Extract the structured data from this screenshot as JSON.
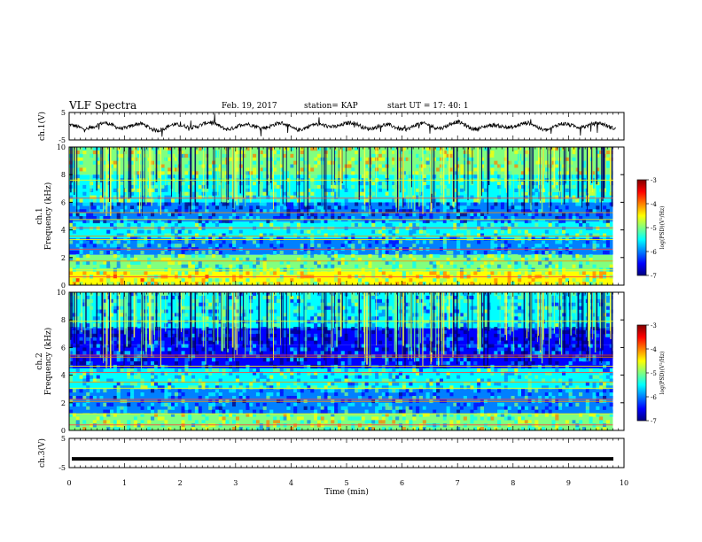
{
  "header": {
    "title": "VLF Spectra",
    "date": "Feb. 19, 2017",
    "station": "station= KAP",
    "start": "start UT = 17: 40: 1"
  },
  "colors": {
    "colormap": [
      "#000080",
      "#0000ff",
      "#0080ff",
      "#00ffff",
      "#80ff80",
      "#ffff00",
      "#ff8000",
      "#ff0000",
      "#800000"
    ],
    "trace": "#000000"
  },
  "chart_data": [
    {
      "type": "line",
      "panel": "ch1-waveform",
      "ylabel": "ch.1(V)",
      "ylim": [
        -5,
        5
      ],
      "yticks": [
        "5",
        "-5"
      ],
      "xlim": [
        0,
        10
      ],
      "description_series": "oscillating voltage trace with ~0.3 min quasi-period, amplitude about ±2 V",
      "series": [
        {
          "values": [
            0.5,
            -1.0,
            1.2,
            -0.8,
            0.9,
            -1.5,
            0.6,
            -0.4,
            1.4,
            -1.1,
            0.8,
            -0.6,
            1.1,
            -1.3,
            0.7,
            -0.2,
            1.3,
            -0.9,
            0.5,
            -1.2,
            1.0,
            -0.7,
            1.5,
            -1.0,
            0.4,
            -0.5,
            1.2,
            -1.4,
            0.9,
            -0.3,
            1.1,
            -0.8
          ]
        }
      ]
    },
    {
      "type": "heatmap",
      "panel": "ch1-spectrogram",
      "ylabel": "ch.1\nFrequency (kHz)",
      "ylim": [
        0,
        10
      ],
      "yticks": [
        "0",
        "2",
        "4",
        "6",
        "8",
        "10"
      ],
      "xlim": [
        0,
        9.8
      ],
      "colorbar": {
        "label": "log(PSD)(V²/Hz)",
        "ticks": [
          "-3",
          "-4",
          "-5",
          "-6",
          "-7"
        ],
        "range": [
          -7,
          -3
        ]
      },
      "bands_khz": [
        {
          "lo": 0.0,
          "hi": 1.0,
          "level": -4.6
        },
        {
          "lo": 1.0,
          "hi": 2.2,
          "level": -5.2
        },
        {
          "lo": 2.2,
          "hi": 3.4,
          "level": -5.8
        },
        {
          "lo": 3.4,
          "hi": 4.6,
          "level": -5.4
        },
        {
          "lo": 4.6,
          "hi": 6.0,
          "level": -6.2
        },
        {
          "lo": 6.0,
          "hi": 8.0,
          "level": -5.3
        },
        {
          "lo": 8.0,
          "hi": 10.0,
          "level": -4.9
        }
      ]
    },
    {
      "type": "heatmap",
      "panel": "ch2-spectrogram",
      "ylabel": "ch.2\nFrequency (kHz)",
      "ylim": [
        0,
        10
      ],
      "yticks": [
        "0",
        "2",
        "4",
        "6",
        "8",
        "10"
      ],
      "xlim": [
        0,
        9.8
      ],
      "colorbar": {
        "label": "log(PSD)(V²/Hz)",
        "ticks": [
          "-3",
          "-4",
          "-5",
          "-6",
          "-7"
        ],
        "range": [
          -7,
          -3
        ]
      },
      "bands_khz": [
        {
          "lo": 0.0,
          "hi": 1.2,
          "level": -5.0
        },
        {
          "lo": 1.2,
          "hi": 3.0,
          "level": -5.9
        },
        {
          "lo": 3.0,
          "hi": 4.5,
          "level": -5.5
        },
        {
          "lo": 4.5,
          "hi": 6.2,
          "level": -6.3
        },
        {
          "lo": 6.2,
          "hi": 7.4,
          "level": -6.6
        },
        {
          "lo": 7.4,
          "hi": 10.0,
          "level": -5.6
        }
      ]
    },
    {
      "type": "line",
      "panel": "ch3-waveform",
      "ylabel": "ch.3(V)",
      "ylim": [
        -5,
        5
      ],
      "yticks": [
        "5",
        "-5"
      ],
      "xlim": [
        0,
        10
      ],
      "series": [
        {
          "values": [
            -2.0,
            -2.0
          ]
        }
      ]
    }
  ],
  "xaxis": {
    "label": "Time (min)",
    "ticks": [
      "0",
      "1",
      "2",
      "3",
      "4",
      "5",
      "6",
      "7",
      "8",
      "9",
      "10"
    ]
  }
}
